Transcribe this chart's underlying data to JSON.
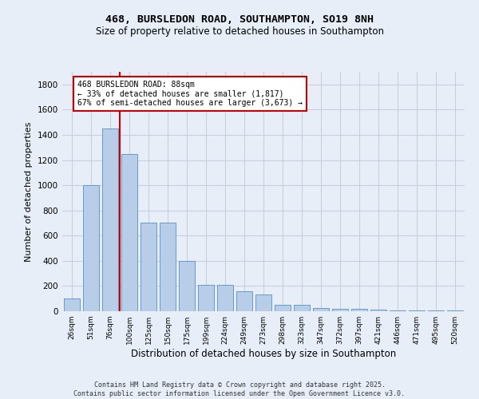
{
  "title_line1": "468, BURSLEDON ROAD, SOUTHAMPTON, SO19 8NH",
  "title_line2": "Size of property relative to detached houses in Southampton",
  "xlabel": "Distribution of detached houses by size in Southampton",
  "ylabel": "Number of detached properties",
  "categories": [
    "26sqm",
    "51sqm",
    "76sqm",
    "100sqm",
    "125sqm",
    "150sqm",
    "175sqm",
    "199sqm",
    "224sqm",
    "249sqm",
    "273sqm",
    "298sqm",
    "323sqm",
    "347sqm",
    "372sqm",
    "397sqm",
    "421sqm",
    "446sqm",
    "471sqm",
    "495sqm",
    "520sqm"
  ],
  "values": [
    100,
    1000,
    1450,
    1250,
    700,
    700,
    400,
    210,
    210,
    160,
    130,
    50,
    50,
    25,
    20,
    20,
    10,
    8,
    8,
    5,
    5
  ],
  "bar_color": "#b8cde8",
  "bar_edge_color": "#6699cc",
  "vline_x_index": 2.5,
  "vline_color": "#cc0000",
  "annotation_text": "468 BURSLEDON ROAD: 88sqm\n← 33% of detached houses are smaller (1,817)\n67% of semi-detached houses are larger (3,673) →",
  "annotation_box_color": "#ffffff",
  "annotation_box_edge": "#cc0000",
  "ylim": [
    0,
    1900
  ],
  "yticks": [
    0,
    200,
    400,
    600,
    800,
    1000,
    1200,
    1400,
    1600,
    1800
  ],
  "grid_color": "#c8d0de",
  "footer": "Contains HM Land Registry data © Crown copyright and database right 2025.\nContains public sector information licensed under the Open Government Licence v3.0.",
  "bg_color": "#e8eef8"
}
